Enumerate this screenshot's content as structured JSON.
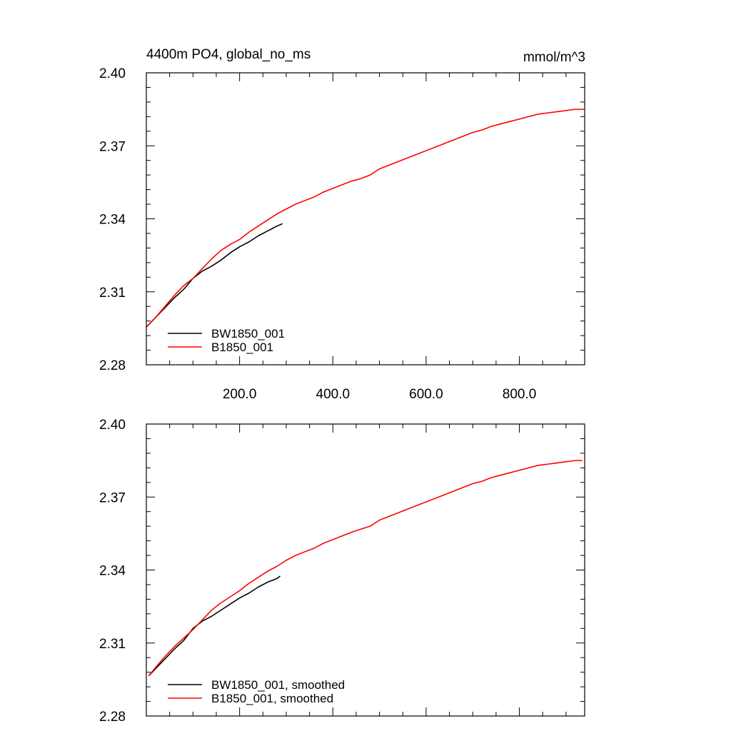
{
  "chart_data": [
    {
      "type": "line",
      "title": "4400m PO4, global_no_ms",
      "units": "mmol/m^3",
      "xlabel": "",
      "ylabel": "",
      "xlim": [
        0,
        940
      ],
      "ylim": [
        2.28,
        2.4
      ],
      "x_ticks": [
        200,
        400,
        600,
        800
      ],
      "x_tick_labels": [
        "200.0",
        "400.0",
        "600.0",
        "800.0"
      ],
      "y_ticks": [
        2.28,
        2.31,
        2.34,
        2.37,
        2.4
      ],
      "y_tick_labels": [
        "2.28",
        "2.31",
        "2.34",
        "2.37",
        "2.40"
      ],
      "legend_position": "lower-left",
      "series": [
        {
          "name": "BW1850_001",
          "color": "#000000",
          "x": [
            0,
            20,
            40,
            60,
            80,
            100,
            120,
            140,
            160,
            180,
            200,
            220,
            240,
            260,
            280,
            292
          ],
          "y": [
            2.2955,
            2.2995,
            2.3035,
            2.3075,
            2.311,
            2.3155,
            2.3185,
            2.3205,
            2.323,
            2.326,
            2.3285,
            2.3305,
            2.333,
            2.335,
            2.337,
            2.338
          ]
        },
        {
          "name": "B1850_001",
          "color": "#ff0000",
          "x": [
            0,
            20,
            40,
            60,
            80,
            100,
            120,
            140,
            160,
            180,
            200,
            220,
            240,
            260,
            280,
            300,
            320,
            340,
            360,
            380,
            400,
            420,
            440,
            460,
            480,
            500,
            520,
            540,
            560,
            580,
            600,
            620,
            640,
            660,
            680,
            700,
            720,
            740,
            760,
            780,
            800,
            820,
            840,
            860,
            880,
            900,
            920,
            940
          ],
          "y": [
            2.2955,
            2.2995,
            2.304,
            2.3085,
            2.3125,
            2.3155,
            2.3195,
            2.3235,
            2.327,
            2.3295,
            2.3315,
            2.3345,
            2.337,
            2.3395,
            2.342,
            2.344,
            2.346,
            2.3475,
            2.349,
            2.351,
            2.3525,
            2.354,
            2.3555,
            2.3565,
            2.358,
            2.3605,
            2.362,
            2.3635,
            2.365,
            2.3665,
            2.368,
            2.3695,
            2.371,
            2.3725,
            2.374,
            2.3755,
            2.3765,
            2.378,
            2.379,
            2.38,
            2.381,
            2.382,
            2.383,
            2.3835,
            2.384,
            2.3845,
            2.385,
            2.385
          ]
        }
      ]
    },
    {
      "type": "line",
      "title": "",
      "xlabel": "",
      "ylabel": "",
      "xlim": [
        0,
        940
      ],
      "ylim": [
        2.28,
        2.4
      ],
      "x_ticks": [
        200,
        400,
        600,
        800
      ],
      "x_tick_labels": [],
      "y_ticks": [
        2.28,
        2.31,
        2.34,
        2.37,
        2.4
      ],
      "y_tick_labels": [
        "2.28",
        "2.31",
        "2.34",
        "2.37",
        "2.40"
      ],
      "legend_position": "lower-left",
      "series": [
        {
          "name": "BW1850_001, smoothed",
          "color": "#000000",
          "x": [
            5,
            20,
            40,
            60,
            80,
            100,
            120,
            140,
            160,
            180,
            200,
            220,
            240,
            260,
            280,
            287
          ],
          "y": [
            2.2965,
            2.2995,
            2.3035,
            2.3075,
            2.311,
            2.316,
            2.319,
            2.321,
            2.3235,
            2.326,
            2.3285,
            2.3305,
            2.333,
            2.335,
            2.3365,
            2.3375
          ]
        },
        {
          "name": "B1850_001, smoothed",
          "color": "#ff0000",
          "x": [
            5,
            20,
            40,
            60,
            80,
            100,
            120,
            140,
            160,
            180,
            200,
            220,
            240,
            260,
            280,
            300,
            320,
            340,
            360,
            380,
            400,
            420,
            440,
            460,
            480,
            500,
            520,
            540,
            560,
            580,
            600,
            620,
            640,
            660,
            680,
            700,
            720,
            740,
            760,
            780,
            800,
            820,
            840,
            860,
            880,
            900,
            920,
            935
          ],
          "y": [
            2.2965,
            2.3,
            2.3045,
            2.3085,
            2.312,
            2.3155,
            2.3195,
            2.3235,
            2.3265,
            2.329,
            2.3315,
            2.3345,
            2.337,
            2.3395,
            2.3415,
            2.344,
            2.346,
            2.3475,
            2.349,
            2.351,
            2.3525,
            2.354,
            2.3555,
            2.3568,
            2.358,
            2.3605,
            2.362,
            2.3635,
            2.365,
            2.3665,
            2.368,
            2.3695,
            2.371,
            2.3725,
            2.374,
            2.3755,
            2.3765,
            2.378,
            2.379,
            2.38,
            2.381,
            2.382,
            2.383,
            2.3835,
            2.384,
            2.3845,
            2.385,
            2.385
          ]
        }
      ]
    }
  ]
}
